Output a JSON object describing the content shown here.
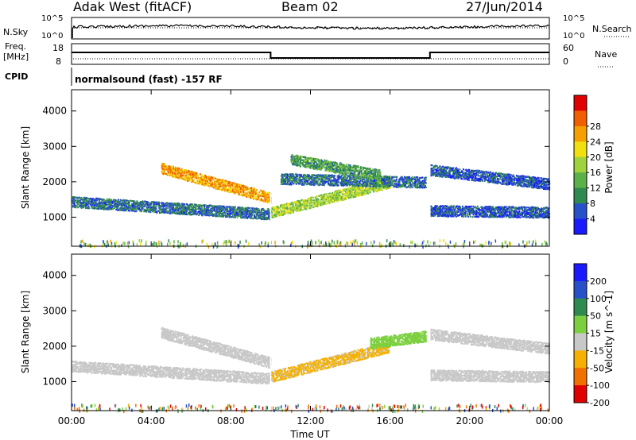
{
  "header": {
    "station": "Adak West (fitACF)",
    "beam": "Beam 02",
    "date": "27/Jun/2014"
  },
  "noise_panel": {
    "left_label": "N.Sky",
    "right_label": "N.Search",
    "left_ticks": [
      "10^5",
      "10^0"
    ],
    "right_ticks": [
      "10^5",
      "10^0"
    ]
  },
  "freq_panel": {
    "left_label_line1": "Freq.",
    "left_label_line2": "[MHz]",
    "right_label": "Nave",
    "left_ticks": [
      "18",
      "8"
    ],
    "right_ticks": [
      "60",
      "0"
    ],
    "freq_steps": [
      {
        "from": "00:00",
        "to": "10:00",
        "level": "high"
      },
      {
        "from": "10:00",
        "to": "18:00",
        "level": "low"
      },
      {
        "from": "18:00",
        "to": "24:00",
        "level": "high"
      }
    ]
  },
  "cpid": {
    "label": "CPID",
    "value": "normalsound (fast) -157 RF"
  },
  "chart_data": [
    {
      "type": "heatmap",
      "name": "power",
      "ylabel": "Slant Range [km]",
      "xlabel": "Time UT",
      "x_ticks": [
        "00:00",
        "04:00",
        "08:00",
        "12:00",
        "16:00",
        "20:00",
        "00:00"
      ],
      "y_ticks": [
        1000,
        2000,
        3000,
        4000
      ],
      "ylim": [
        180,
        4600
      ],
      "xlim_hours": [
        0,
        24
      ],
      "colorbar_label": "Power [dB]",
      "colorbar_ticks": [
        4,
        8,
        12,
        16,
        20,
        24,
        28
      ],
      "colors": [
        "#1a1aff",
        "#2850c8",
        "#2e8a4e",
        "#5cb04a",
        "#9fd23c",
        "#f0e010",
        "#f5a000",
        "#f06000",
        "#e00000"
      ],
      "backscatter_bands": [
        {
          "t_start": 0.0,
          "t_end": 10.0,
          "range_start": 1450,
          "range_end": 1100,
          "power": 8
        },
        {
          "t_start": 4.5,
          "t_end": 10.0,
          "range_start": 2400,
          "range_end": 1550,
          "power": 26
        },
        {
          "t_start": 10.0,
          "t_end": 16.0,
          "range_start": 1150,
          "range_end": 2000,
          "power": 18
        },
        {
          "t_start": 10.5,
          "t_end": 17.8,
          "range_start": 2100,
          "range_end": 2000,
          "power": 8
        },
        {
          "t_start": 11.0,
          "t_end": 15.5,
          "range_start": 2650,
          "range_end": 2200,
          "power": 12
        },
        {
          "t_start": 18.0,
          "t_end": 24.0,
          "range_start": 2350,
          "range_end": 1950,
          "power": 6
        },
        {
          "t_start": 18.0,
          "t_end": 24.0,
          "range_start": 1200,
          "range_end": 1150,
          "power": 6
        }
      ]
    },
    {
      "type": "heatmap",
      "name": "velocity",
      "ylabel": "Slant Range [km]",
      "xlabel": "Time UT",
      "x_ticks": [
        "00:00",
        "04:00",
        "08:00",
        "12:00",
        "16:00",
        "20:00",
        "00:00"
      ],
      "y_ticks": [
        1000,
        2000,
        3000,
        4000
      ],
      "ylim": [
        180,
        4600
      ],
      "xlim_hours": [
        0,
        24
      ],
      "colorbar_label": "Velocity [m s^-1]",
      "colorbar_ticks": [
        200,
        100,
        50,
        15,
        -15,
        -50,
        -100,
        -200
      ],
      "colors": [
        "#1a1aff",
        "#2850c8",
        "#2e8a4e",
        "#7cd040",
        "#c8c8c8",
        "#f5b000",
        "#f07000",
        "#e00000"
      ],
      "backscatter_bands": [
        {
          "t_start": 0.0,
          "t_end": 10.0,
          "range_start": 1450,
          "range_end": 1100,
          "velocity": -5
        },
        {
          "t_start": 4.5,
          "t_end": 10.0,
          "range_start": 2400,
          "range_end": 1550,
          "velocity": 0
        },
        {
          "t_start": 10.0,
          "t_end": 16.0,
          "range_start": 1150,
          "range_end": 2000,
          "velocity": -20
        },
        {
          "t_start": 15.0,
          "t_end": 17.8,
          "range_start": 2100,
          "range_end": 2300,
          "velocity": 30
        },
        {
          "t_start": 18.0,
          "t_end": 24.0,
          "range_start": 2350,
          "range_end": 1950,
          "velocity": 0
        },
        {
          "t_start": 18.0,
          "t_end": 24.0,
          "range_start": 1200,
          "range_end": 1150,
          "velocity": -5
        }
      ]
    }
  ]
}
